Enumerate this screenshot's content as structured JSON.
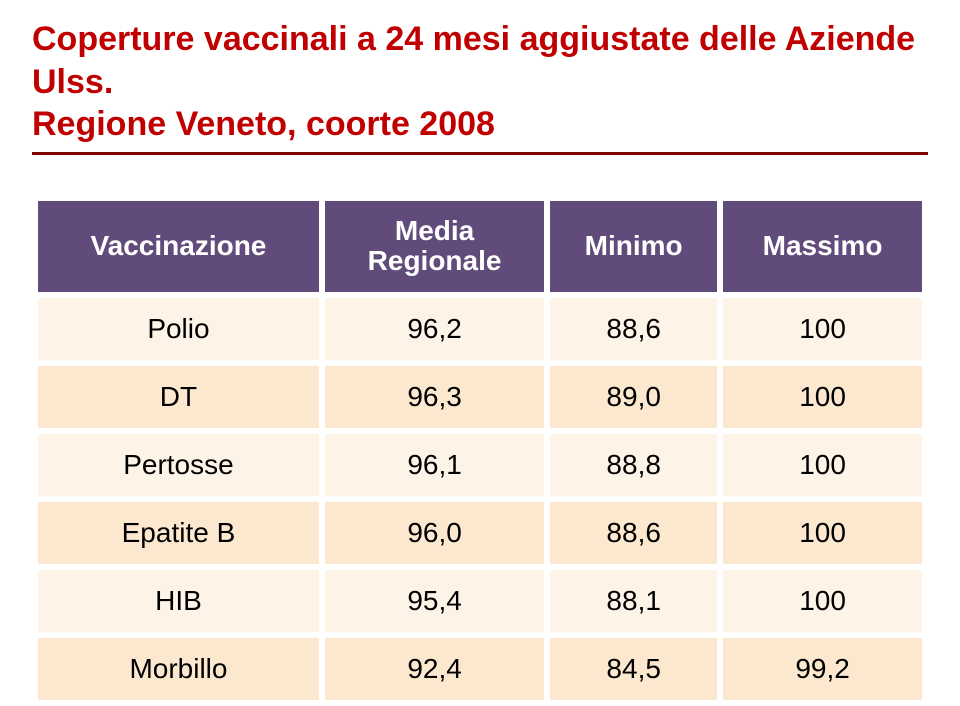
{
  "title": {
    "line1": "Coperture vaccinali a 24 mesi aggiustate delle Aziende Ulss.",
    "line2": "Regione Veneto, coorte 2008",
    "color": "#c00000"
  },
  "divider_color": "#7f0000",
  "table": {
    "header_bg": "#604b7a",
    "header_text_color": "#ffffff",
    "row_bg_odd": "#fdf3e6",
    "row_bg_even": "#fbe8ce",
    "columns": [
      {
        "label_top": "Vaccinazione",
        "label_bottom": ""
      },
      {
        "label_top": "Media",
        "label_bottom": "Regionale"
      },
      {
        "label_top": "Minimo",
        "label_bottom": ""
      },
      {
        "label_top": "Massimo",
        "label_bottom": ""
      }
    ],
    "rows": [
      {
        "vaccine": "Polio",
        "media": "96,2",
        "min": "88,6",
        "max": "100"
      },
      {
        "vaccine": "DT",
        "media": "96,3",
        "min": "89,0",
        "max": "100"
      },
      {
        "vaccine": "Pertosse",
        "media": "96,1",
        "min": "88,8",
        "max": "100"
      },
      {
        "vaccine": "Epatite B",
        "media": "96,0",
        "min": "88,6",
        "max": "100"
      },
      {
        "vaccine": "HIB",
        "media": "95,4",
        "min": "88,1",
        "max": "100"
      },
      {
        "vaccine": "Morbillo",
        "media": "92,4",
        "min": "84,5",
        "max": "99,2"
      }
    ]
  }
}
